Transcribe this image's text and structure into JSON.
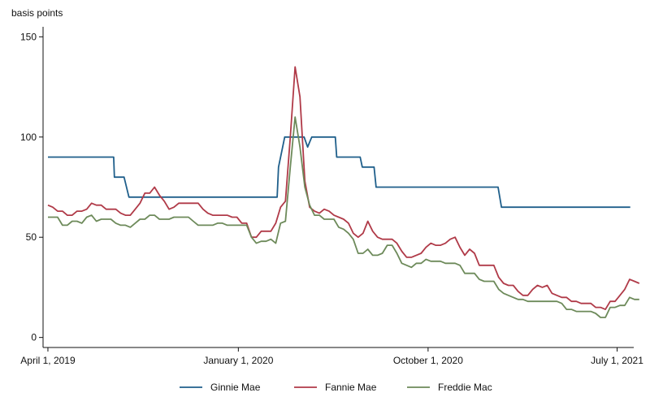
{
  "chart_data": {
    "type": "line",
    "title": "",
    "ylabel": "basis points",
    "xlabel": "",
    "ylim": [
      -5,
      155
    ],
    "yticks": [
      0,
      50,
      100,
      150
    ],
    "xlim": [
      "2019-03-25",
      "2021-07-25"
    ],
    "xticks": [
      {
        "date": "2019-04-01",
        "label": "April 1, 2019"
      },
      {
        "date": "2020-01-01",
        "label": "January 1, 2020"
      },
      {
        "date": "2020-10-01",
        "label": "October 1, 2020"
      },
      {
        "date": "2021-07-01",
        "label": "July 1, 2021"
      }
    ],
    "grid": false,
    "legend_position": "bottom",
    "series": [
      {
        "name": "Ginnie Mae",
        "color": "#1f5f8b",
        "points": [
          [
            "2019-04-01",
            90
          ],
          [
            "2019-07-05",
            90
          ],
          [
            "2019-07-06",
            80
          ],
          [
            "2019-07-20",
            80
          ],
          [
            "2019-07-27",
            70
          ],
          [
            "2020-02-26",
            70
          ],
          [
            "2020-02-28",
            85
          ],
          [
            "2020-03-08",
            100
          ],
          [
            "2020-04-05",
            100
          ],
          [
            "2020-04-10",
            95
          ],
          [
            "2020-04-16",
            100
          ],
          [
            "2020-05-20",
            100
          ],
          [
            "2020-05-22",
            90
          ],
          [
            "2020-06-25",
            90
          ],
          [
            "2020-06-28",
            85
          ],
          [
            "2020-07-15",
            85
          ],
          [
            "2020-07-18",
            75
          ],
          [
            "2021-01-10",
            75
          ],
          [
            "2021-01-15",
            65
          ],
          [
            "2021-07-20",
            65
          ]
        ]
      },
      {
        "name": "Fannie Mae",
        "color": "#b03a48",
        "points": [
          [
            "2019-04-01",
            66
          ],
          [
            "2019-04-08",
            65
          ],
          [
            "2019-04-15",
            63
          ],
          [
            "2019-04-22",
            63
          ],
          [
            "2019-04-29",
            61
          ],
          [
            "2019-05-06",
            61
          ],
          [
            "2019-05-13",
            63
          ],
          [
            "2019-05-20",
            63
          ],
          [
            "2019-05-27",
            64
          ],
          [
            "2019-06-03",
            67
          ],
          [
            "2019-06-10",
            66
          ],
          [
            "2019-06-17",
            66
          ],
          [
            "2019-06-24",
            64
          ],
          [
            "2019-07-01",
            64
          ],
          [
            "2019-07-08",
            64
          ],
          [
            "2019-07-15",
            62
          ],
          [
            "2019-07-22",
            61
          ],
          [
            "2019-07-29",
            61
          ],
          [
            "2019-08-05",
            64
          ],
          [
            "2019-08-12",
            67
          ],
          [
            "2019-08-19",
            72
          ],
          [
            "2019-08-26",
            72
          ],
          [
            "2019-09-02",
            75
          ],
          [
            "2019-09-09",
            71
          ],
          [
            "2019-09-16",
            68
          ],
          [
            "2019-09-23",
            64
          ],
          [
            "2019-09-30",
            65
          ],
          [
            "2019-10-07",
            67
          ],
          [
            "2019-10-14",
            67
          ],
          [
            "2019-10-21",
            67
          ],
          [
            "2019-10-28",
            67
          ],
          [
            "2019-11-04",
            67
          ],
          [
            "2019-11-11",
            64
          ],
          [
            "2019-11-18",
            62
          ],
          [
            "2019-11-25",
            61
          ],
          [
            "2019-12-02",
            61
          ],
          [
            "2019-12-09",
            61
          ],
          [
            "2019-12-16",
            61
          ],
          [
            "2019-12-23",
            60
          ],
          [
            "2019-12-30",
            60
          ],
          [
            "2020-01-06",
            57
          ],
          [
            "2020-01-13",
            57
          ],
          [
            "2020-01-20",
            50
          ],
          [
            "2020-01-27",
            50
          ],
          [
            "2020-02-03",
            53
          ],
          [
            "2020-02-10",
            53
          ],
          [
            "2020-02-17",
            53
          ],
          [
            "2020-02-24",
            57
          ],
          [
            "2020-03-02",
            65
          ],
          [
            "2020-03-09",
            68
          ],
          [
            "2020-03-16",
            100
          ],
          [
            "2020-03-23",
            135
          ],
          [
            "2020-03-30",
            120
          ],
          [
            "2020-04-06",
            78
          ],
          [
            "2020-04-13",
            65
          ],
          [
            "2020-04-20",
            63
          ],
          [
            "2020-04-27",
            62
          ],
          [
            "2020-05-04",
            64
          ],
          [
            "2020-05-11",
            63
          ],
          [
            "2020-05-18",
            61
          ],
          [
            "2020-05-25",
            60
          ],
          [
            "2020-06-01",
            59
          ],
          [
            "2020-06-08",
            57
          ],
          [
            "2020-06-15",
            52
          ],
          [
            "2020-06-22",
            50
          ],
          [
            "2020-06-29",
            52
          ],
          [
            "2020-07-06",
            58
          ],
          [
            "2020-07-13",
            53
          ],
          [
            "2020-07-20",
            50
          ],
          [
            "2020-07-27",
            49
          ],
          [
            "2020-08-03",
            49
          ],
          [
            "2020-08-10",
            49
          ],
          [
            "2020-08-17",
            47
          ],
          [
            "2020-08-24",
            43
          ],
          [
            "2020-08-31",
            40
          ],
          [
            "2020-09-07",
            40
          ],
          [
            "2020-09-14",
            41
          ],
          [
            "2020-09-21",
            42
          ],
          [
            "2020-09-28",
            45
          ],
          [
            "2020-10-05",
            47
          ],
          [
            "2020-10-12",
            46
          ],
          [
            "2020-10-19",
            46
          ],
          [
            "2020-10-26",
            47
          ],
          [
            "2020-11-02",
            49
          ],
          [
            "2020-11-09",
            50
          ],
          [
            "2020-11-16",
            45
          ],
          [
            "2020-11-23",
            41
          ],
          [
            "2020-11-30",
            44
          ],
          [
            "2020-12-07",
            42
          ],
          [
            "2020-12-14",
            36
          ],
          [
            "2020-12-21",
            36
          ],
          [
            "2020-12-28",
            36
          ],
          [
            "2021-01-04",
            36
          ],
          [
            "2021-01-11",
            30
          ],
          [
            "2021-01-18",
            27
          ],
          [
            "2021-01-25",
            26
          ],
          [
            "2021-02-01",
            26
          ],
          [
            "2021-02-08",
            23
          ],
          [
            "2021-02-15",
            21
          ],
          [
            "2021-02-22",
            21
          ],
          [
            "2021-03-01",
            24
          ],
          [
            "2021-03-08",
            26
          ],
          [
            "2021-03-15",
            25
          ],
          [
            "2021-03-22",
            26
          ],
          [
            "2021-03-29",
            22
          ],
          [
            "2021-04-05",
            21
          ],
          [
            "2021-04-12",
            20
          ],
          [
            "2021-04-19",
            20
          ],
          [
            "2021-04-26",
            18
          ],
          [
            "2021-05-03",
            18
          ],
          [
            "2021-05-10",
            17
          ],
          [
            "2021-05-17",
            17
          ],
          [
            "2021-05-24",
            17
          ],
          [
            "2021-05-31",
            15
          ],
          [
            "2021-06-07",
            15
          ],
          [
            "2021-06-14",
            14
          ],
          [
            "2021-06-21",
            18
          ],
          [
            "2021-06-28",
            18
          ],
          [
            "2021-07-05",
            21
          ],
          [
            "2021-07-12",
            24
          ],
          [
            "2021-07-19",
            29
          ],
          [
            "2021-07-26",
            28
          ],
          [
            "2021-08-02",
            27
          ]
        ]
      },
      {
        "name": "Freddie Mac",
        "color": "#6d8a5a",
        "points": [
          [
            "2019-04-01",
            60
          ],
          [
            "2019-04-08",
            60
          ],
          [
            "2019-04-15",
            60
          ],
          [
            "2019-04-22",
            56
          ],
          [
            "2019-04-29",
            56
          ],
          [
            "2019-05-06",
            58
          ],
          [
            "2019-05-13",
            58
          ],
          [
            "2019-05-20",
            57
          ],
          [
            "2019-05-27",
            60
          ],
          [
            "2019-06-03",
            61
          ],
          [
            "2019-06-10",
            58
          ],
          [
            "2019-06-17",
            59
          ],
          [
            "2019-06-24",
            59
          ],
          [
            "2019-07-01",
            59
          ],
          [
            "2019-07-08",
            57
          ],
          [
            "2019-07-15",
            56
          ],
          [
            "2019-07-22",
            56
          ],
          [
            "2019-07-29",
            55
          ],
          [
            "2019-08-05",
            57
          ],
          [
            "2019-08-12",
            59
          ],
          [
            "2019-08-19",
            59
          ],
          [
            "2019-08-26",
            61
          ],
          [
            "2019-09-02",
            61
          ],
          [
            "2019-09-09",
            59
          ],
          [
            "2019-09-16",
            59
          ],
          [
            "2019-09-23",
            59
          ],
          [
            "2019-09-30",
            60
          ],
          [
            "2019-10-07",
            60
          ],
          [
            "2019-10-14",
            60
          ],
          [
            "2019-10-21",
            60
          ],
          [
            "2019-10-28",
            58
          ],
          [
            "2019-11-04",
            56
          ],
          [
            "2019-11-11",
            56
          ],
          [
            "2019-11-18",
            56
          ],
          [
            "2019-11-25",
            56
          ],
          [
            "2019-12-02",
            57
          ],
          [
            "2019-12-09",
            57
          ],
          [
            "2019-12-16",
            56
          ],
          [
            "2019-12-23",
            56
          ],
          [
            "2019-12-30",
            56
          ],
          [
            "2020-01-06",
            56
          ],
          [
            "2020-01-13",
            56
          ],
          [
            "2020-01-20",
            50
          ],
          [
            "2020-01-27",
            47
          ],
          [
            "2020-02-03",
            48
          ],
          [
            "2020-02-10",
            48
          ],
          [
            "2020-02-17",
            49
          ],
          [
            "2020-02-24",
            47
          ],
          [
            "2020-03-02",
            57
          ],
          [
            "2020-03-09",
            58
          ],
          [
            "2020-03-16",
            85
          ],
          [
            "2020-03-23",
            110
          ],
          [
            "2020-03-30",
            95
          ],
          [
            "2020-04-06",
            75
          ],
          [
            "2020-04-13",
            66
          ],
          [
            "2020-04-20",
            61
          ],
          [
            "2020-04-27",
            61
          ],
          [
            "2020-05-04",
            59
          ],
          [
            "2020-05-11",
            59
          ],
          [
            "2020-05-18",
            59
          ],
          [
            "2020-05-25",
            55
          ],
          [
            "2020-06-01",
            54
          ],
          [
            "2020-06-08",
            52
          ],
          [
            "2020-06-15",
            49
          ],
          [
            "2020-06-22",
            42
          ],
          [
            "2020-06-29",
            42
          ],
          [
            "2020-07-06",
            44
          ],
          [
            "2020-07-13",
            41
          ],
          [
            "2020-07-20",
            41
          ],
          [
            "2020-07-27",
            42
          ],
          [
            "2020-08-03",
            46
          ],
          [
            "2020-08-10",
            46
          ],
          [
            "2020-08-17",
            42
          ],
          [
            "2020-08-24",
            37
          ],
          [
            "2020-08-31",
            36
          ],
          [
            "2020-09-07",
            35
          ],
          [
            "2020-09-14",
            37
          ],
          [
            "2020-09-21",
            37
          ],
          [
            "2020-09-28",
            39
          ],
          [
            "2020-10-05",
            38
          ],
          [
            "2020-10-12",
            38
          ],
          [
            "2020-10-19",
            38
          ],
          [
            "2020-10-26",
            37
          ],
          [
            "2020-11-02",
            37
          ],
          [
            "2020-11-09",
            37
          ],
          [
            "2020-11-16",
            36
          ],
          [
            "2020-11-23",
            32
          ],
          [
            "2020-11-30",
            32
          ],
          [
            "2020-12-07",
            32
          ],
          [
            "2020-12-14",
            29
          ],
          [
            "2020-12-21",
            28
          ],
          [
            "2020-12-28",
            28
          ],
          [
            "2021-01-04",
            28
          ],
          [
            "2021-01-11",
            24
          ],
          [
            "2021-01-18",
            22
          ],
          [
            "2021-01-25",
            21
          ],
          [
            "2021-02-01",
            20
          ],
          [
            "2021-02-08",
            19
          ],
          [
            "2021-02-15",
            19
          ],
          [
            "2021-02-22",
            18
          ],
          [
            "2021-03-01",
            18
          ],
          [
            "2021-03-08",
            18
          ],
          [
            "2021-03-15",
            18
          ],
          [
            "2021-03-22",
            18
          ],
          [
            "2021-03-29",
            18
          ],
          [
            "2021-04-05",
            18
          ],
          [
            "2021-04-12",
            17
          ],
          [
            "2021-04-19",
            14
          ],
          [
            "2021-04-26",
            14
          ],
          [
            "2021-05-03",
            13
          ],
          [
            "2021-05-10",
            13
          ],
          [
            "2021-05-17",
            13
          ],
          [
            "2021-05-24",
            13
          ],
          [
            "2021-05-31",
            12
          ],
          [
            "2021-06-07",
            10
          ],
          [
            "2021-06-14",
            10
          ],
          [
            "2021-06-21",
            15
          ],
          [
            "2021-06-28",
            15
          ],
          [
            "2021-07-05",
            16
          ],
          [
            "2021-07-12",
            16
          ],
          [
            "2021-07-19",
            20
          ],
          [
            "2021-07-26",
            19
          ],
          [
            "2021-08-02",
            19
          ]
        ]
      }
    ]
  }
}
